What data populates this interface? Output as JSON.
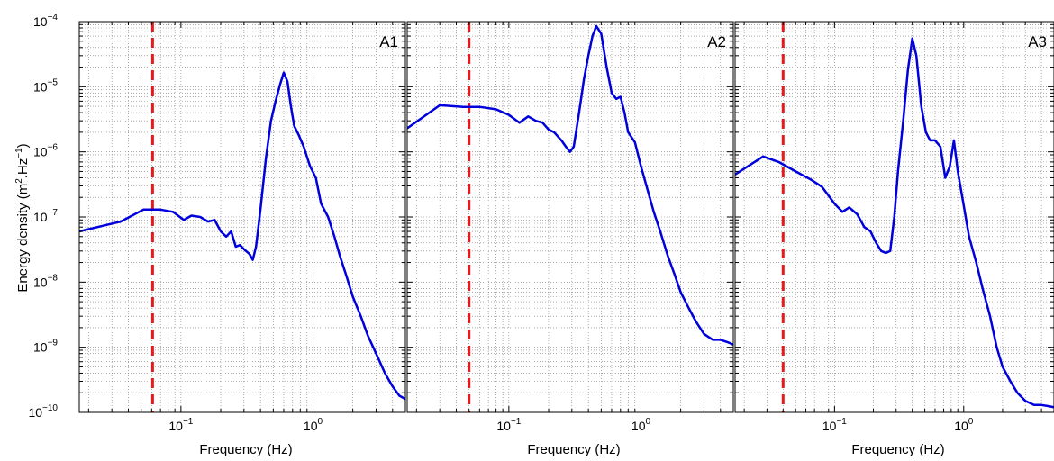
{
  "figure": {
    "ylabel": "Energy density (m",
    "ylabel_sup1": "2",
    "ylabel_mid": ".Hz",
    "ylabel_sup2": "−1",
    "ylabel_end": ")"
  },
  "chart_data": [
    {
      "type": "line",
      "panel_label": "A1",
      "xlabel": "Frequency (Hz)",
      "xscale": "log",
      "yscale": "log",
      "xlim": [
        0.017,
        5.0
      ],
      "ylim": [
        1e-10,
        0.0001
      ],
      "grid": true,
      "x_ticks": [
        {
          "base": "10",
          "exp": "−1",
          "value": 0.1
        },
        {
          "base": "10",
          "exp": "0",
          "value": 1.0
        }
      ],
      "y_ticks": [
        {
          "base": "10",
          "exp": "−4",
          "value": 0.0001
        },
        {
          "base": "10",
          "exp": "−5",
          "value": 1e-05
        },
        {
          "base": "10",
          "exp": "−6",
          "value": 1e-06
        },
        {
          "base": "10",
          "exp": "−7",
          "value": 1e-07
        },
        {
          "base": "10",
          "exp": "−8",
          "value": 1e-08
        },
        {
          "base": "10",
          "exp": "−9",
          "value": 1e-09
        },
        {
          "base": "10",
          "exp": "−10",
          "value": 1e-10
        }
      ],
      "reference_line": {
        "x": 0.061,
        "color": "#e41a1c",
        "style": "dashed"
      },
      "series": [
        {
          "color": "#0000dd",
          "x": [
            0.017,
            0.035,
            0.052,
            0.07,
            0.087,
            0.105,
            0.12,
            0.14,
            0.16,
            0.18,
            0.2,
            0.22,
            0.24,
            0.26,
            0.28,
            0.3,
            0.33,
            0.35,
            0.37,
            0.4,
            0.44,
            0.48,
            0.52,
            0.56,
            0.6,
            0.64,
            0.68,
            0.72,
            0.78,
            0.85,
            0.95,
            1.05,
            1.15,
            1.3,
            1.45,
            1.6,
            1.8,
            2.0,
            2.3,
            2.6,
            3.0,
            3.5,
            4.0,
            4.5,
            5.0
          ],
          "y": [
            6e-08,
            8.5e-08,
            1.3e-07,
            1.3e-07,
            1.2e-07,
            9e-08,
            1.05e-07,
            1e-07,
            8.5e-08,
            9e-08,
            6e-08,
            5e-08,
            6e-08,
            3.5e-08,
            3.7e-08,
            3.2e-08,
            2.7e-08,
            2.2e-08,
            3.5e-08,
            1.3e-07,
            8e-07,
            3e-06,
            6e-06,
            1.05e-05,
            1.65e-05,
            1.2e-05,
            5e-06,
            2.5e-06,
            1.8e-06,
            1.2e-06,
            6e-07,
            4e-07,
            1.6e-07,
            1e-07,
            5e-08,
            2.5e-08,
            1.2e-08,
            6e-09,
            3e-09,
            1.5e-09,
            8e-10,
            4e-10,
            2.5e-10,
            1.8e-10,
            1.6e-10
          ]
        }
      ]
    },
    {
      "type": "line",
      "panel_label": "A2",
      "xlabel": "Frequency (Hz)",
      "xscale": "log",
      "yscale": "log",
      "xlim": [
        0.017,
        5.0
      ],
      "ylim": [
        1e-10,
        0.0001
      ],
      "grid": true,
      "x_ticks": [
        {
          "base": "10",
          "exp": "−1",
          "value": 0.1
        },
        {
          "base": "10",
          "exp": "0",
          "value": 1.0
        }
      ],
      "reference_line": {
        "x": 0.05,
        "color": "#e41a1c",
        "style": "dashed"
      },
      "series": [
        {
          "color": "#0000dd",
          "x": [
            0.017,
            0.03,
            0.045,
            0.06,
            0.08,
            0.1,
            0.12,
            0.14,
            0.16,
            0.18,
            0.2,
            0.22,
            0.25,
            0.27,
            0.29,
            0.31,
            0.34,
            0.37,
            0.4,
            0.43,
            0.46,
            0.5,
            0.55,
            0.6,
            0.65,
            0.7,
            0.75,
            0.8,
            0.9,
            1.0,
            1.1,
            1.25,
            1.4,
            1.6,
            1.8,
            2.0,
            2.3,
            2.6,
            3.0,
            3.5,
            4.0,
            4.5,
            5.0
          ],
          "y": [
            2.3e-06,
            5.2e-06,
            4.9e-06,
            4.9e-06,
            4.5e-06,
            3.7e-06,
            2.8e-06,
            3.5e-06,
            3e-06,
            2.8e-06,
            2.2e-06,
            2e-06,
            1.5e-06,
            1.2e-06,
            1e-06,
            1.2e-06,
            4e-06,
            1.3e-05,
            3e-05,
            6e-05,
            8.5e-05,
            6.5e-05,
            2e-05,
            8e-06,
            6.5e-06,
            7e-06,
            4e-06,
            2e-06,
            1.4e-06,
            6e-07,
            3e-07,
            1.2e-07,
            6e-08,
            2.5e-08,
            1.3e-08,
            7e-09,
            4e-09,
            2.5e-09,
            1.6e-09,
            1.3e-09,
            1.3e-09,
            1.2e-09,
            1.1e-09
          ]
        }
      ]
    },
    {
      "type": "line",
      "panel_label": "A3",
      "xlabel": "Frequency (Hz)",
      "xscale": "log",
      "yscale": "log",
      "xlim": [
        0.017,
        5.0
      ],
      "ylim": [
        1e-10,
        0.0001
      ],
      "grid": true,
      "x_ticks": [
        {
          "base": "10",
          "exp": "−1",
          "value": 0.1
        },
        {
          "base": "10",
          "exp": "0",
          "value": 1.0
        }
      ],
      "reference_line": {
        "x": 0.04,
        "color": "#e41a1c",
        "style": "dashed"
      },
      "series": [
        {
          "color": "#0000dd",
          "x": [
            0.017,
            0.028,
            0.037,
            0.05,
            0.065,
            0.08,
            0.1,
            0.115,
            0.13,
            0.15,
            0.17,
            0.19,
            0.21,
            0.23,
            0.25,
            0.27,
            0.29,
            0.31,
            0.34,
            0.37,
            0.4,
            0.43,
            0.47,
            0.51,
            0.55,
            0.6,
            0.66,
            0.72,
            0.78,
            0.84,
            0.9,
            1.0,
            1.1,
            1.25,
            1.4,
            1.6,
            1.8,
            2.0,
            2.3,
            2.6,
            3.0,
            3.5,
            4.0,
            4.5,
            5.0
          ],
          "y": [
            4.5e-07,
            8.5e-07,
            7e-07,
            5e-07,
            3.8e-07,
            2.9e-07,
            1.6e-07,
            1.2e-07,
            1.4e-07,
            1.1e-07,
            7e-08,
            6e-08,
            4e-08,
            3e-08,
            2.8e-08,
            3e-08,
            1e-07,
            5e-07,
            3e-06,
            1.8e-05,
            5.5e-05,
            3e-05,
            5e-06,
            2e-06,
            1.5e-06,
            1.5e-06,
            1.2e-06,
            4e-07,
            6e-07,
            1.5e-06,
            5e-07,
            1.5e-07,
            5e-08,
            2e-08,
            8e-09,
            3e-09,
            1e-09,
            5e-10,
            3e-10,
            2e-10,
            1.5e-10,
            1.3e-10,
            1.3e-10,
            1.25e-10,
            1.2e-10
          ]
        }
      ]
    }
  ]
}
